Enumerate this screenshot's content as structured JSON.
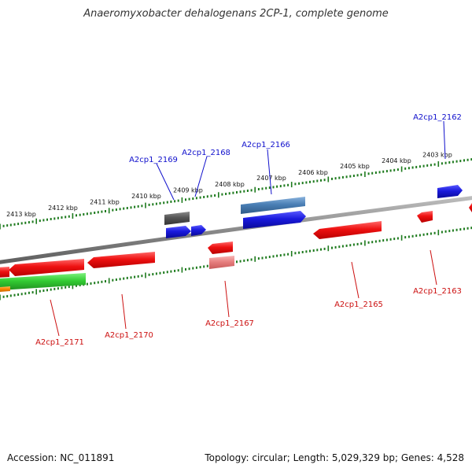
{
  "title": "Anaeromyxobacter dehalogenans 2CP-1, complete genome",
  "footer": {
    "accession": "Accession: NC_011891",
    "topology": "Topology: circular; Length: 5,029,329 bp; Genes: 4,528"
  },
  "colors": {
    "backbone": "#8a8a8a",
    "tick": "#1d7a1d",
    "forward_label": "#1010cc",
    "reverse_label": "#cc1010",
    "cds_red": "#ee1111",
    "cds_blue": "#1a1add",
    "cds_green": "#33cc33",
    "cds_steelblue": "#4a7fb5",
    "cds_gray": "#555555",
    "cds_pink": "#e88080",
    "cds_orange": "#ff8800"
  },
  "kbp_ticks": [
    {
      "label": "2403 kbp"
    },
    {
      "label": "2404 kbp"
    },
    {
      "label": "2405 kbp"
    },
    {
      "label": "2406 kbp"
    },
    {
      "label": "2407 kbp"
    },
    {
      "label": "2408 kbp"
    },
    {
      "label": "2409 kbp"
    },
    {
      "label": "2410 kbp"
    },
    {
      "label": "2411 kbp"
    },
    {
      "label": "2412 kbp"
    },
    {
      "label": "2413 kbp"
    }
  ],
  "gene_labels": {
    "forward": [
      "A2cp1_2162",
      "A2cp1_2166",
      "A2cp1_2168",
      "A2cp1_2169"
    ],
    "reverse": [
      "A2cp1_2163",
      "A2cp1_2165",
      "A2cp1_2167",
      "A2cp1_2170",
      "A2cp1_2171"
    ]
  }
}
